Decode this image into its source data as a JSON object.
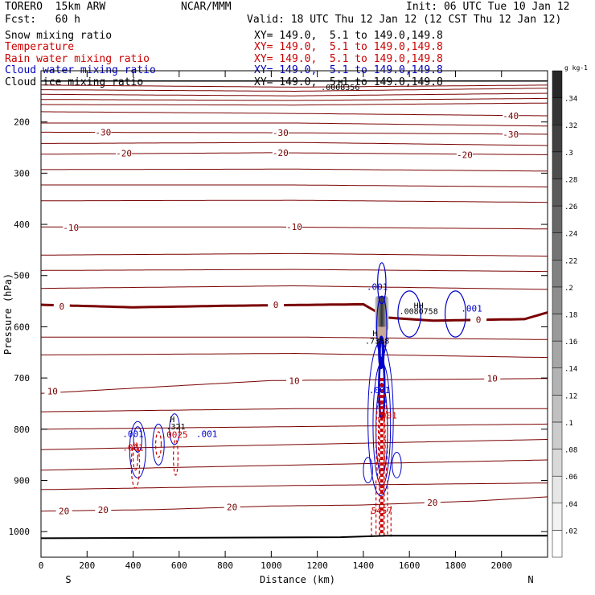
{
  "header": {
    "model": "TORERO  15km ARW",
    "center": "NCAR/MMM",
    "init": "Init: 06 UTC Tue 10 Jan 12",
    "fcst": "Fcst:   60 h",
    "valid": "Valid: 18 UTC Thu 12 Jan 12 (12 CST Thu 12 Jan 12)"
  },
  "fields": [
    {
      "name": "Snow mixing ratio",
      "xy": "XY= 149.0,  5.1 to 149.0,149.8",
      "color": "#000000"
    },
    {
      "name": "Temperature",
      "xy": "XY= 149.0,  5.1 to 149.0,149.8",
      "color": "#cc0000"
    },
    {
      "name": "Rain water mixing ratio",
      "xy": "XY= 149.0,  5.1 to 149.0,149.8",
      "color": "#cc0000"
    },
    {
      "name": "Cloud water mixing ratio",
      "xy": "XY= 149.0,  5.1 to 149.0,149.8",
      "color": "#0000bb"
    },
    {
      "name": "Cloud ice mixing ratio",
      "xy": "XY= 149.0,  5.1 to 149.0,149.8",
      "color": "#000000"
    }
  ],
  "colorbar": {
    "unit": "g kg-1",
    "levels": [
      ".02",
      ".04",
      ".06",
      ".08",
      ".1",
      ".12",
      ".14",
      ".16",
      ".18",
      ".2",
      ".22",
      ".24",
      ".26",
      ".28",
      ".3",
      ".32",
      ".34"
    ]
  },
  "colors": {
    "temperature": "#7a0000",
    "rain": "#cc0000",
    "cloud_water": "#0000cc",
    "ground": "#000000"
  },
  "chart_data": {
    "type": "cross-section contour",
    "xlabel": "Distance (km)",
    "ylabel": "Pressure (hPa)",
    "xlim": [
      0,
      2200
    ],
    "ylim": [
      1050,
      100
    ],
    "x_ticks": [
      "0",
      "200",
      "400",
      "600",
      "800",
      "1000",
      "1200",
      "1400",
      "1600",
      "1800",
      "2000"
    ],
    "y_ticks": [
      "200",
      "300",
      "400",
      "500",
      "600",
      "700",
      "800",
      "900",
      "1000"
    ],
    "end_labels": {
      "left": "S",
      "right": "N"
    },
    "temperature_contours": [
      {
        "label": "-40",
        "x": [
          0,
          1000,
          2200
        ],
        "p": [
          180,
          183,
          188
        ],
        "label_at": [
          [
            2040,
            188
          ]
        ]
      },
      {
        "label": "-30",
        "x": [
          0,
          1000,
          2200
        ],
        "p": [
          220,
          221,
          224
        ],
        "label_at": [
          [
            270,
            220
          ],
          [
            1040,
            221
          ],
          [
            2040,
            224
          ]
        ]
      },
      {
        "label": "-20",
        "x": [
          0,
          1000,
          2200
        ],
        "p": [
          263,
          260,
          264
        ],
        "label_at": [
          [
            360,
            261
          ],
          [
            1040,
            260
          ],
          [
            1840,
            264
          ]
        ]
      },
      {
        "label": "-10",
        "x": [
          0,
          1000,
          2200
        ],
        "p": [
          405,
          405,
          409
        ],
        "label_at": [
          [
            130,
            406
          ],
          [
            1100,
            405
          ]
        ]
      },
      {
        "label": "0",
        "x": [
          0,
          400,
          800,
          1200,
          1400,
          1500,
          1700,
          2100,
          2200
        ],
        "p": [
          557,
          562,
          559,
          557,
          556,
          582,
          588,
          585,
          572
        ],
        "thick": true,
        "label_at": [
          [
            90,
            560
          ],
          [
            1020,
            557
          ],
          [
            1900,
            586
          ]
        ]
      },
      {
        "label": "10",
        "x": [
          0,
          1000,
          2200
        ],
        "p": [
          730,
          705,
          701
        ],
        "label_at": [
          [
            50,
            726
          ],
          [
            1100,
            705
          ],
          [
            1960,
            701
          ]
        ]
      },
      {
        "label": "20",
        "x": [
          0,
          500,
          1000,
          1400,
          1900,
          2200
        ],
        "p": [
          960,
          957,
          950,
          948,
          940,
          932
        ],
        "label_at": [
          [
            100,
            960
          ],
          [
            270,
            957
          ],
          [
            830,
            952
          ],
          [
            1700,
            943
          ]
        ]
      }
    ],
    "temperature_other_levels": {
      "x": [
        0,
        1100,
        2200
      ],
      "p": [
        [
          128,
          132,
          128
        ],
        [
          137,
          140,
          134
        ],
        [
          146,
          149,
          144
        ],
        [
          156,
          158,
          154
        ],
        [
          166,
          167,
          163
        ],
        [
          202,
          202,
          208
        ],
        [
          242,
          240,
          246
        ],
        [
          293,
          292,
          296
        ],
        [
          323,
          323,
          327
        ],
        [
          354,
          353,
          357
        ],
        [
          460,
          457,
          462
        ],
        [
          490,
          488,
          492
        ],
        [
          525,
          520,
          527
        ],
        [
          620,
          620,
          625
        ],
        [
          655,
          652,
          660
        ],
        [
          766,
          760,
          760
        ],
        [
          800,
          795,
          790
        ],
        [
          840,
          830,
          820
        ],
        [
          880,
          870,
          860
        ],
        [
          918,
          910,
          905
        ]
      ]
    },
    "rain_contour_labels": [
      {
        "label": ".001",
        "x": 400,
        "p": 842
      },
      {
        "label": ".0025",
        "x": 580,
        "p": 817
      },
      {
        "label": ".001",
        "x": 1500,
        "p": 779
      },
      {
        "label": "5457",
        "x": 1480,
        "p": 965
      }
    ],
    "cloud_water_labels": [
      {
        "label": ".001",
        "x": 1460,
        "p": 528
      },
      {
        "label": ".001",
        "x": 1870,
        "p": 570
      },
      {
        "label": ".001",
        "x": 1470,
        "p": 730
      },
      {
        "label": ".001",
        "x": 400,
        "p": 815
      },
      {
        "label": ".001",
        "x": 720,
        "p": 815
      }
    ],
    "maxima_labels": [
      {
        "label": "H",
        "x": 1450,
        "p": 618
      },
      {
        "label": ".7358",
        "x": 1460,
        "p": 633
      },
      {
        "label": "H",
        "x": 570,
        "p": 786
      },
      {
        "label": ".321",
        "x": 585,
        "p": 800
      },
      {
        "label": "HH",
        "x": 1640,
        "p": 564
      },
      {
        "label": ".0080758",
        "x": 1640,
        "p": 575
      },
      {
        "label": "H",
        "x": 1300,
        "p": 128
      },
      {
        "label": ".0008356",
        "x": 1300,
        "p": 138
      }
    ]
  }
}
